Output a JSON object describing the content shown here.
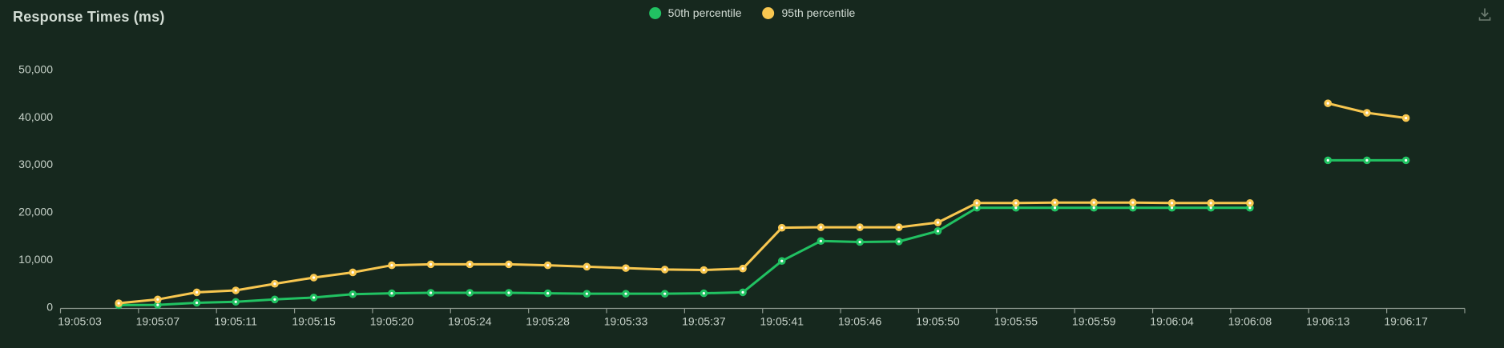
{
  "colors": {
    "background": "#16281e",
    "title_text": "#d3ddd5",
    "tick_label": "#c6d1c8",
    "axis": "#8f9a90",
    "icon": "#6e7d72",
    "point_center": "#ffffff"
  },
  "header": {
    "download_icon": "download-icon"
  },
  "chart_data": {
    "type": "line",
    "title": "Response Times (ms)",
    "xlabel": "",
    "ylabel": "",
    "ylim": [
      0,
      50000
    ],
    "grid": false,
    "legend_position": "top-center",
    "y_ticks": [
      {
        "label": "0",
        "value": 0
      },
      {
        "label": "10,000",
        "value": 10000
      },
      {
        "label": "20,000",
        "value": 20000
      },
      {
        "label": "30,000",
        "value": 30000
      },
      {
        "label": "40,000",
        "value": 40000
      },
      {
        "label": "50,000",
        "value": 50000
      }
    ],
    "x_tick_labels": [
      "19:05:03",
      "19:05:07",
      "19:05:11",
      "19:05:15",
      "19:05:20",
      "19:05:24",
      "19:05:28",
      "19:05:33",
      "19:05:37",
      "19:05:41",
      "19:05:46",
      "19:05:50",
      "19:05:55",
      "19:05:59",
      "19:06:04",
      "19:06:08",
      "19:06:13",
      "19:06:17"
    ],
    "categories": [
      "19:05:03",
      "19:05:05",
      "19:05:07",
      "19:05:09",
      "19:05:11",
      "19:05:13",
      "19:05:15",
      "19:05:18",
      "19:05:20",
      "19:05:22",
      "19:05:24",
      "19:05:26",
      "19:05:28",
      "19:05:31",
      "19:05:33",
      "19:05:35",
      "19:05:37",
      "19:05:39",
      "19:05:41",
      "19:05:44",
      "19:05:46",
      "19:05:48",
      "19:05:50",
      "19:05:53",
      "19:05:55",
      "19:05:57",
      "19:05:59",
      "19:06:02",
      "19:06:04",
      "19:06:06",
      "19:06:08",
      "19:06:11",
      "19:06:13",
      "19:06:15",
      "19:06:17"
    ],
    "series": [
      {
        "name": "50th percentile",
        "color": "#21c262",
        "values": [
          null,
          400,
          450,
          900,
          1100,
          1600,
          2000,
          2700,
          2900,
          3000,
          3000,
          3000,
          2900,
          2800,
          2800,
          2800,
          2900,
          3100,
          9700,
          13900,
          13700,
          13800,
          16000,
          20900,
          20900,
          20900,
          20900,
          20900,
          20900,
          20900,
          20900,
          null,
          30900,
          30900,
          30900
        ]
      },
      {
        "name": "95th percentile",
        "color": "#f8c750",
        "values": [
          null,
          800,
          1600,
          3100,
          3500,
          4900,
          6200,
          7300,
          8800,
          9000,
          9000,
          9000,
          8800,
          8500,
          8200,
          7900,
          7800,
          8100,
          16700,
          16800,
          16800,
          16800,
          17800,
          21900,
          21900,
          22000,
          22000,
          22000,
          21900,
          21900,
          21900,
          null,
          42900,
          40900,
          39800
        ]
      }
    ]
  }
}
